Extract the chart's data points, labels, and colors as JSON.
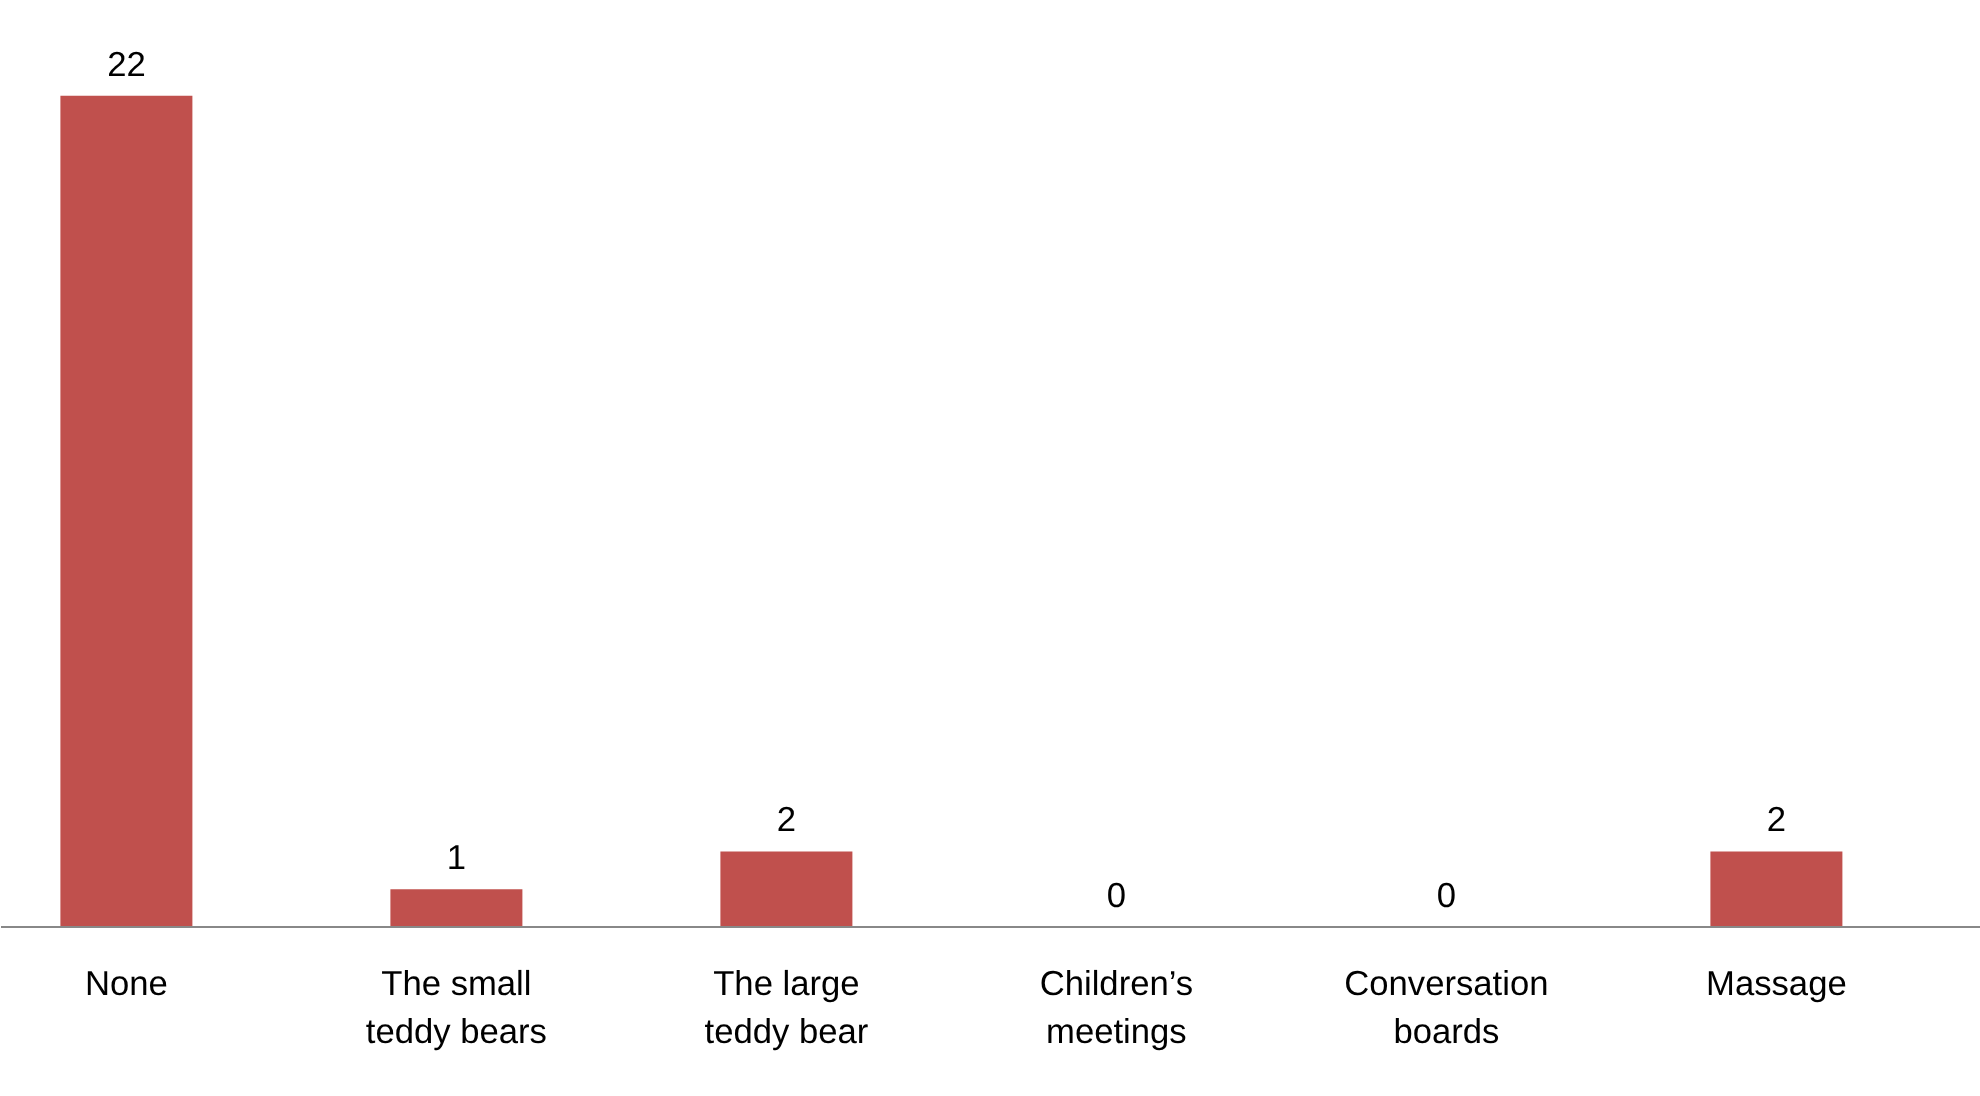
{
  "chart_data": {
    "type": "bar",
    "categories": [
      "None",
      "The small teddy bears",
      "The large teddy bear",
      "Children’s meetings",
      "Conversation boards",
      "Massage"
    ],
    "values": [
      22,
      1,
      2,
      0,
      0,
      2
    ],
    "color": "#c0504d",
    "data_labels": true,
    "grid": false
  }
}
